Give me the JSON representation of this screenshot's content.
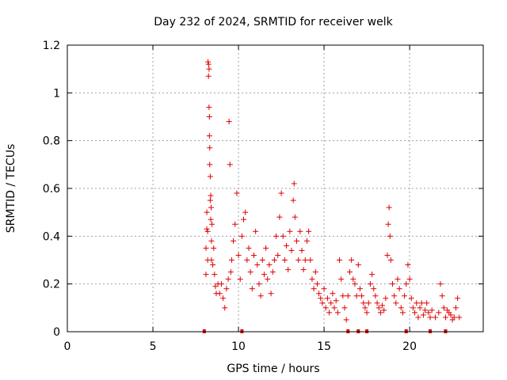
{
  "chart_data": {
    "type": "scatter",
    "title": "Day 232 of 2024, SRMTID for receiver welk",
    "xlabel": "GPS time / hours",
    "ylabel": "SRMTID / TECUs",
    "xlim": [
      0,
      24.3
    ],
    "ylim": [
      0,
      1.2
    ],
    "xticks": [
      "0",
      "5",
      "10",
      "15",
      "20"
    ],
    "xtick_values": [
      0,
      5,
      10,
      15,
      20
    ],
    "yticks": [
      "0",
      "0.2",
      "0.4",
      "0.6",
      "0.8",
      "1",
      "1.2"
    ],
    "ytick_values": [
      0,
      0.2,
      0.4,
      0.6,
      0.8,
      1.0,
      1.2
    ],
    "grid": true,
    "marker": "plus",
    "marker_color": "#e00000",
    "series": [
      {
        "name": "SRMTID",
        "points": [
          [
            8.1,
            0.24
          ],
          [
            8.1,
            0.35
          ],
          [
            8.15,
            0.43
          ],
          [
            8.15,
            0.5
          ],
          [
            8.2,
            0.3
          ],
          [
            8.2,
            0.42
          ],
          [
            8.22,
            1.13
          ],
          [
            8.25,
            1.12
          ],
          [
            8.25,
            1.07
          ],
          [
            8.28,
            1.1
          ],
          [
            8.28,
            0.94
          ],
          [
            8.3,
            0.9
          ],
          [
            8.3,
            0.82
          ],
          [
            8.32,
            0.77
          ],
          [
            8.32,
            0.7
          ],
          [
            8.35,
            0.65
          ],
          [
            8.35,
            0.55
          ],
          [
            8.38,
            0.57
          ],
          [
            8.38,
            0.47
          ],
          [
            8.4,
            0.52
          ],
          [
            8.42,
            0.38
          ],
          [
            8.42,
            0.3
          ],
          [
            8.45,
            0.45
          ],
          [
            8.5,
            0.28
          ],
          [
            8.55,
            0.35
          ],
          [
            8.6,
            0.24
          ],
          [
            8.65,
            0.19
          ],
          [
            8.7,
            0.16
          ],
          [
            8.8,
            0.2
          ],
          [
            8.9,
            0.16
          ],
          [
            9.0,
            0.2
          ],
          [
            9.1,
            0.14
          ],
          [
            9.2,
            0.1
          ],
          [
            9.3,
            0.18
          ],
          [
            9.4,
            0.22
          ],
          [
            9.45,
            0.88
          ],
          [
            9.5,
            0.7
          ],
          [
            9.55,
            0.25
          ],
          [
            9.6,
            0.3
          ],
          [
            9.7,
            0.38
          ],
          [
            9.8,
            0.45
          ],
          [
            9.9,
            0.58
          ],
          [
            10.0,
            0.32
          ],
          [
            10.1,
            0.22
          ],
          [
            10.2,
            0.4
          ],
          [
            10.3,
            0.47
          ],
          [
            10.4,
            0.5
          ],
          [
            10.5,
            0.3
          ],
          [
            10.6,
            0.35
          ],
          [
            10.7,
            0.25
          ],
          [
            10.8,
            0.18
          ],
          [
            10.9,
            0.32
          ],
          [
            11.0,
            0.42
          ],
          [
            11.1,
            0.28
          ],
          [
            11.2,
            0.2
          ],
          [
            11.3,
            0.15
          ],
          [
            11.4,
            0.3
          ],
          [
            11.5,
            0.24
          ],
          [
            11.6,
            0.35
          ],
          [
            11.7,
            0.22
          ],
          [
            11.8,
            0.28
          ],
          [
            11.9,
            0.16
          ],
          [
            12.0,
            0.25
          ],
          [
            12.1,
            0.3
          ],
          [
            12.2,
            0.4
          ],
          [
            12.3,
            0.32
          ],
          [
            12.4,
            0.48
          ],
          [
            12.5,
            0.58
          ],
          [
            12.6,
            0.4
          ],
          [
            12.7,
            0.3
          ],
          [
            12.8,
            0.36
          ],
          [
            12.9,
            0.26
          ],
          [
            13.0,
            0.42
          ],
          [
            13.1,
            0.34
          ],
          [
            13.2,
            0.55
          ],
          [
            13.25,
            0.62
          ],
          [
            13.3,
            0.48
          ],
          [
            13.4,
            0.38
          ],
          [
            13.5,
            0.3
          ],
          [
            13.6,
            0.42
          ],
          [
            13.7,
            0.34
          ],
          [
            13.8,
            0.26
          ],
          [
            13.9,
            0.3
          ],
          [
            14.0,
            0.38
          ],
          [
            14.1,
            0.42
          ],
          [
            14.2,
            0.3
          ],
          [
            14.3,
            0.22
          ],
          [
            14.4,
            0.18
          ],
          [
            14.5,
            0.25
          ],
          [
            14.6,
            0.2
          ],
          [
            14.7,
            0.16
          ],
          [
            14.8,
            0.14
          ],
          [
            14.9,
            0.12
          ],
          [
            15.0,
            0.18
          ],
          [
            15.1,
            0.1
          ],
          [
            15.2,
            0.14
          ],
          [
            15.3,
            0.08
          ],
          [
            15.4,
            0.12
          ],
          [
            15.5,
            0.16
          ],
          [
            15.6,
            0.1
          ],
          [
            15.7,
            0.13
          ],
          [
            15.8,
            0.08
          ],
          [
            15.9,
            0.3
          ],
          [
            16.0,
            0.22
          ],
          [
            16.1,
            0.15
          ],
          [
            16.2,
            0.1
          ],
          [
            16.3,
            0.05
          ],
          [
            16.4,
            0.15
          ],
          [
            16.5,
            0.25
          ],
          [
            16.6,
            0.3
          ],
          [
            16.7,
            0.22
          ],
          [
            16.8,
            0.2
          ],
          [
            16.9,
            0.15
          ],
          [
            17.0,
            0.28
          ],
          [
            17.1,
            0.18
          ],
          [
            17.2,
            0.15
          ],
          [
            17.3,
            0.12
          ],
          [
            17.4,
            0.1
          ],
          [
            17.5,
            0.08
          ],
          [
            17.6,
            0.12
          ],
          [
            17.7,
            0.2
          ],
          [
            17.8,
            0.24
          ],
          [
            17.9,
            0.18
          ],
          [
            18.0,
            0.15
          ],
          [
            18.1,
            0.12
          ],
          [
            18.2,
            0.1
          ],
          [
            18.3,
            0.08
          ],
          [
            18.4,
            0.11
          ],
          [
            18.5,
            0.09
          ],
          [
            18.6,
            0.14
          ],
          [
            18.7,
            0.32
          ],
          [
            18.75,
            0.45
          ],
          [
            18.8,
            0.52
          ],
          [
            18.85,
            0.4
          ],
          [
            18.9,
            0.3
          ],
          [
            19.0,
            0.2
          ],
          [
            19.1,
            0.15
          ],
          [
            19.2,
            0.12
          ],
          [
            19.3,
            0.22
          ],
          [
            19.4,
            0.18
          ],
          [
            19.5,
            0.1
          ],
          [
            19.6,
            0.08
          ],
          [
            19.7,
            0.15
          ],
          [
            19.8,
            0.2
          ],
          [
            19.9,
            0.28
          ],
          [
            20.0,
            0.22
          ],
          [
            20.1,
            0.14
          ],
          [
            20.2,
            0.1
          ],
          [
            20.3,
            0.08
          ],
          [
            20.4,
            0.12
          ],
          [
            20.5,
            0.06
          ],
          [
            20.6,
            0.1
          ],
          [
            20.7,
            0.12
          ],
          [
            20.8,
            0.07
          ],
          [
            20.9,
            0.09
          ],
          [
            21.0,
            0.12
          ],
          [
            21.1,
            0.08
          ],
          [
            21.2,
            0.06
          ],
          [
            21.3,
            0.09
          ],
          [
            21.5,
            0.06
          ],
          [
            21.7,
            0.08
          ],
          [
            21.8,
            0.2
          ],
          [
            21.9,
            0.15
          ],
          [
            22.0,
            0.1
          ],
          [
            22.1,
            0.06
          ],
          [
            22.2,
            0.09
          ],
          [
            22.3,
            0.08
          ],
          [
            22.4,
            0.07
          ],
          [
            22.5,
            0.05
          ],
          [
            22.6,
            0.06
          ],
          [
            22.7,
            0.1
          ],
          [
            22.8,
            0.14
          ],
          [
            22.9,
            0.06
          ]
        ]
      }
    ],
    "baseline_flags_x": [
      8.0,
      10.2,
      16.4,
      17.0,
      17.5,
      19.8,
      21.2,
      22.1
    ]
  }
}
